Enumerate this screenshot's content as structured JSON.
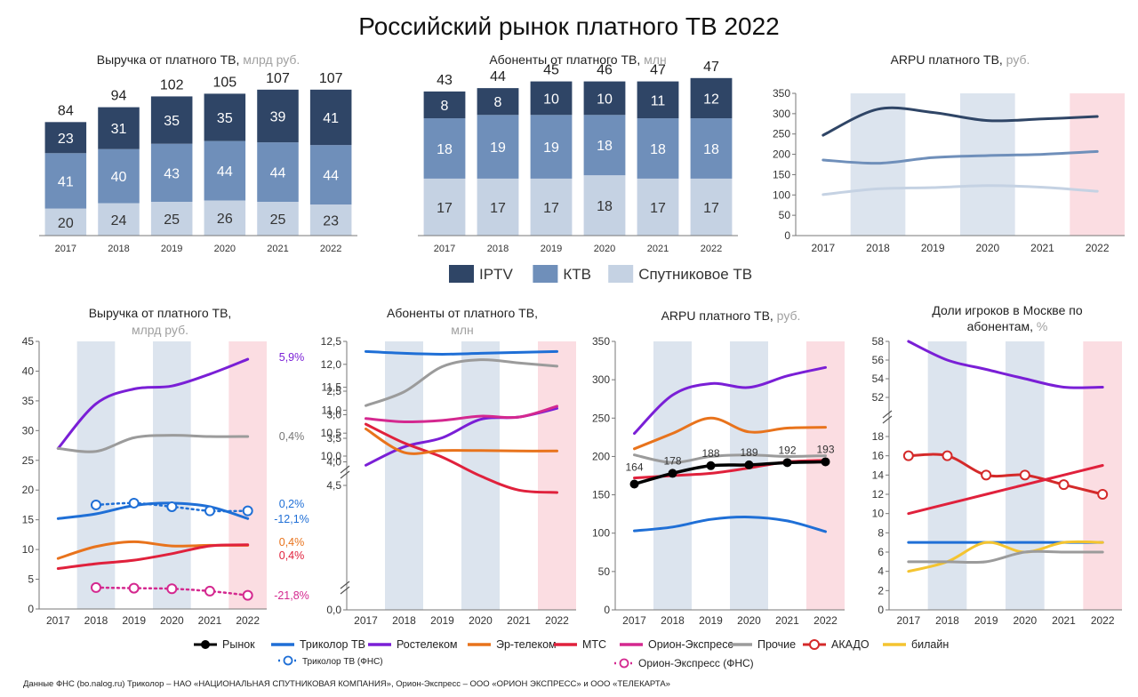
{
  "header": {
    "title": "Российский рынок платного ТВ 2022",
    "source": "Данные ФНС (bo.nalog.ru) Триколор – НАО «НАЦИОНАЛЬНАЯ СПУТНИКОВАЯ КОМПАНИЯ», Орион-Экспресс – ООО «ОРИОН ЭКСПРЕСС» и ООО «ТЕЛЕКАРТА»"
  },
  "colors": {
    "iptv": "#2f4566",
    "ktv": "#6f8fba",
    "sat": "#c5d2e3",
    "shade": "#dce4ee",
    "pink": "#fbdde2",
    "market": "#000000",
    "tricolor": "#1f6fd6",
    "rostelecom": "#7a1fd6",
    "ertelecom": "#e8731c",
    "mts": "#e0213c",
    "orion": "#d4288f",
    "other": "#9b9b9b",
    "akado": "#d42a2a",
    "beeline": "#f4c430"
  },
  "legend_top": [
    {
      "name": "IPTV",
      "color": "#2f4566"
    },
    {
      "name": "КТВ",
      "color": "#6f8fba"
    },
    {
      "name": "Спутниковое ТВ",
      "color": "#c5d2e3"
    }
  ],
  "legend_bottom": [
    {
      "name": "Рынок",
      "color": "#000000",
      "marker": "dot"
    },
    {
      "name": "Триколор ТВ",
      "color": "#1f6fd6"
    },
    {
      "name": "Ростелеком",
      "color": "#7a1fd6"
    },
    {
      "name": "Эр-телеком",
      "color": "#e8731c"
    },
    {
      "name": "МТС",
      "color": "#e0213c"
    },
    {
      "name": "Орион-Экспресс",
      "color": "#d4288f"
    },
    {
      "name": "Прочие",
      "color": "#9b9b9b"
    },
    {
      "name": "АКАДО",
      "color": "#d42a2a",
      "marker": "ring"
    },
    {
      "name": "билайн",
      "color": "#f4c430"
    },
    {
      "name": "Триколор ТВ (ФНС)",
      "color": "#1f6fd6",
      "marker": "dotted"
    },
    {
      "name": "Орион-Экспресс (ФНС)",
      "color": "#d4288f",
      "marker": "dotted"
    }
  ],
  "chart_data": [
    {
      "type": "bar",
      "stacked": true,
      "title": "Выручка от платного ТВ,",
      "unit": "млрд руб.",
      "categories": [
        "2017",
        "2018",
        "2019",
        "2020",
        "2021",
        "2022"
      ],
      "series": [
        {
          "name": "Спутниковое ТВ",
          "values": [
            20,
            24,
            25,
            26,
            25,
            23
          ]
        },
        {
          "name": "КТВ",
          "values": [
            41,
            40,
            43,
            44,
            44,
            44
          ]
        },
        {
          "name": "IPTV",
          "values": [
            23,
            31,
            35,
            35,
            39,
            41
          ]
        }
      ],
      "totals": [
        84,
        94,
        102,
        105,
        107,
        107
      ],
      "ylim": [
        0,
        110
      ]
    },
    {
      "type": "bar",
      "stacked": true,
      "title": "Абоненты от платного ТВ,",
      "unit": "млн",
      "categories": [
        "2017",
        "2018",
        "2019",
        "2020",
        "2021",
        "2022"
      ],
      "series": [
        {
          "name": "Спутниковое ТВ",
          "values": [
            17,
            17,
            17,
            18,
            17,
            17
          ]
        },
        {
          "name": "КТВ",
          "values": [
            18,
            19,
            19,
            18,
            18,
            18
          ]
        },
        {
          "name": "IPTV",
          "values": [
            8,
            8,
            10,
            10,
            11,
            12
          ]
        }
      ],
      "totals": [
        43,
        44,
        45,
        46,
        47,
        47
      ],
      "ylim": [
        0,
        48
      ]
    },
    {
      "type": "line",
      "title": "ARPU платного ТВ,",
      "unit": "руб.",
      "x": [
        "2017",
        "2018",
        "2019",
        "2020",
        "2021",
        "2022"
      ],
      "yticks": [
        0,
        50,
        100,
        150,
        200,
        250,
        300,
        350
      ],
      "ylim": [
        0,
        350
      ],
      "series": [
        {
          "color": "#2f4566",
          "values": [
            247,
            311,
            303,
            283,
            287,
            293
          ]
        },
        {
          "color": "#6f8fba",
          "values": [
            186,
            178,
            192,
            197,
            200,
            207
          ]
        },
        {
          "color": "#c5d2e3",
          "values": [
            101,
            115,
            118,
            123,
            119,
            109
          ]
        }
      ]
    },
    {
      "type": "line",
      "title": "Выручка от платного ТВ,",
      "unit": "млрд руб.",
      "x": [
        "2017",
        "2018",
        "2019",
        "2020",
        "2021",
        "2022"
      ],
      "yticks": [
        0,
        5,
        10,
        15,
        20,
        25,
        30,
        35,
        40,
        45
      ],
      "ylim": [
        0,
        45
      ],
      "series": [
        {
          "name": "Ростелеком",
          "values": [
            27,
            34.5,
            37,
            37.5,
            39.5,
            42
          ]
        },
        {
          "name": "Прочие",
          "values": [
            27,
            26.5,
            28.8,
            29.2,
            29,
            29
          ]
        },
        {
          "name": "Триколор ТВ",
          "values": [
            15.2,
            16,
            17.4,
            17.8,
            17.2,
            15.2
          ]
        },
        {
          "name": "Триколор ТВ (ФНС)",
          "values": [
            null,
            17.5,
            17.8,
            17.2,
            16.5,
            16.5
          ]
        },
        {
          "name": "Эр-телеком",
          "values": [
            8.5,
            10.5,
            11.3,
            10.6,
            10.7,
            10.7
          ]
        },
        {
          "name": "МТС",
          "values": [
            6.8,
            7.6,
            8.2,
            9.3,
            10.6,
            10.8
          ]
        },
        {
          "name": "Орион-Экспресс (ФНС)",
          "values": [
            null,
            3.6,
            3.5,
            3.4,
            3.0,
            2.3
          ]
        }
      ],
      "labels": [
        "5,9%",
        "0,4%",
        "0,2%",
        "-12,1%",
        "0,4%",
        "0,4%",
        "-21,8%"
      ]
    },
    {
      "type": "line",
      "title": "Абоненты от платного ТВ,",
      "unit": "млн",
      "x": [
        "2017",
        "2018",
        "2019",
        "2020",
        "2021",
        "2022"
      ],
      "axis_break": true,
      "yticks_upper": [
        "10,0",
        "10,5",
        "11,0",
        "11,5",
        "12,0",
        "12,5"
      ],
      "yticks_lower": [
        "0,0",
        "2,5",
        "3,0",
        "3,5",
        "4,0",
        "4,5"
      ],
      "series": [
        {
          "name": "Триколор ТВ",
          "values": [
            12.28,
            12.24,
            12.22,
            12.24,
            12.26,
            12.28
          ]
        },
        {
          "name": "Прочие",
          "values": [
            11.1,
            11.4,
            11.95,
            12.1,
            12.03,
            11.96
          ]
        },
        {
          "name": "Ростелеком",
          "values": [
            9.8,
            10.2,
            10.4,
            10.8,
            10.85,
            11.04
          ]
        },
        {
          "name": "МТС",
          "values": [
            3.2,
            3.6,
            3.9,
            4.3,
            4.6,
            4.65
          ]
        },
        {
          "name": "Эр-телеком",
          "values": [
            3.3,
            3.8,
            3.76,
            3.76,
            3.77,
            3.77
          ]
        },
        {
          "name": "Орион-Экспресс",
          "values": [
            3.08,
            3.15,
            3.12,
            3.03,
            3.05,
            2.82
          ]
        }
      ]
    },
    {
      "type": "line",
      "title": "ARPU платного ТВ,",
      "unit": "руб.",
      "x": [
        "2017",
        "2018",
        "2019",
        "2020",
        "2021",
        "2022"
      ],
      "yticks": [
        0,
        50,
        100,
        150,
        200,
        250,
        300,
        350
      ],
      "ylim": [
        0,
        350
      ],
      "series": [
        {
          "name": "Ростелеком",
          "values": [
            230,
            280,
            295,
            290,
            305,
            316
          ]
        },
        {
          "name": "Эр-телеком",
          "values": [
            210,
            230,
            250,
            232,
            237,
            238
          ]
        },
        {
          "name": "Прочие",
          "values": [
            202,
            192,
            200,
            202,
            200,
            201
          ]
        },
        {
          "name": "МТС",
          "values": [
            172,
            175,
            178,
            185,
            193,
            195
          ]
        },
        {
          "name": "Рынок",
          "values": [
            164,
            178,
            188,
            189,
            192,
            193
          ]
        },
        {
          "name": "Триколор ТВ",
          "values": [
            103,
            108,
            118,
            121,
            116,
            102
          ]
        }
      ],
      "market_labels": [
        "164",
        "178",
        "188",
        "189",
        "192",
        "193"
      ]
    },
    {
      "type": "line",
      "title": "Доли игроков в Москве по абонентам,",
      "unit": "%",
      "x": [
        "2017",
        "2018",
        "2019",
        "2020",
        "2021",
        "2022"
      ],
      "axis_break": true,
      "yticks_upper": [
        52,
        54,
        56,
        58
      ],
      "yticks_lower": [
        0,
        2,
        4,
        6,
        8,
        10,
        12,
        14,
        16,
        18
      ],
      "series": [
        {
          "name": "Ростелеком",
          "values": [
            58,
            56,
            55,
            54,
            53.1,
            53.1
          ]
        },
        {
          "name": "АКАДО",
          "values": [
            16,
            16,
            14,
            14,
            13,
            12
          ]
        },
        {
          "name": "МТС",
          "values": [
            10,
            11,
            12,
            13,
            14,
            15
          ]
        },
        {
          "name": "Триколор ТВ",
          "values": [
            7,
            7,
            7,
            7,
            7,
            7
          ]
        },
        {
          "name": "билайн",
          "values": [
            4,
            5,
            7,
            6,
            7,
            7
          ]
        },
        {
          "name": "Прочие",
          "values": [
            5,
            5,
            5,
            6,
            6,
            6
          ]
        }
      ]
    }
  ]
}
